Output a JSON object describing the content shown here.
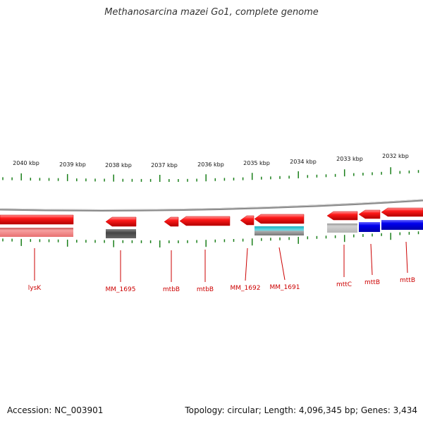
{
  "title": "Methanosarcina mazei Go1, complete genome",
  "accession": "Accession: NC_003901",
  "summary": "Topology: circular; Length: 4,096,345 bp; Genes: 3,434",
  "colors": {
    "tick": "#1a7f1a",
    "label": "#cc0000",
    "backbone": "#888888",
    "gene": "#ee0000",
    "strand_pink": "#f08080",
    "strand_dark": "#555555",
    "strand_cyan": "#22bbcc",
    "strand_light": "#bbbbbb",
    "strand_blue": "#1111ee"
  },
  "scale_labels": [
    "2040 kbp",
    "2039 kbp",
    "2038 kbp",
    "2037 kbp",
    "2036 kbp",
    "2035 kbp",
    "2034 kbp",
    "2033 kbp",
    "2032 kbp"
  ],
  "gene_labels": [
    "lysK",
    "MM_1695",
    "mtbB",
    "mtbB",
    "MM_1692",
    "MM_1691",
    "mttC",
    "mttB",
    "mttB"
  ]
}
